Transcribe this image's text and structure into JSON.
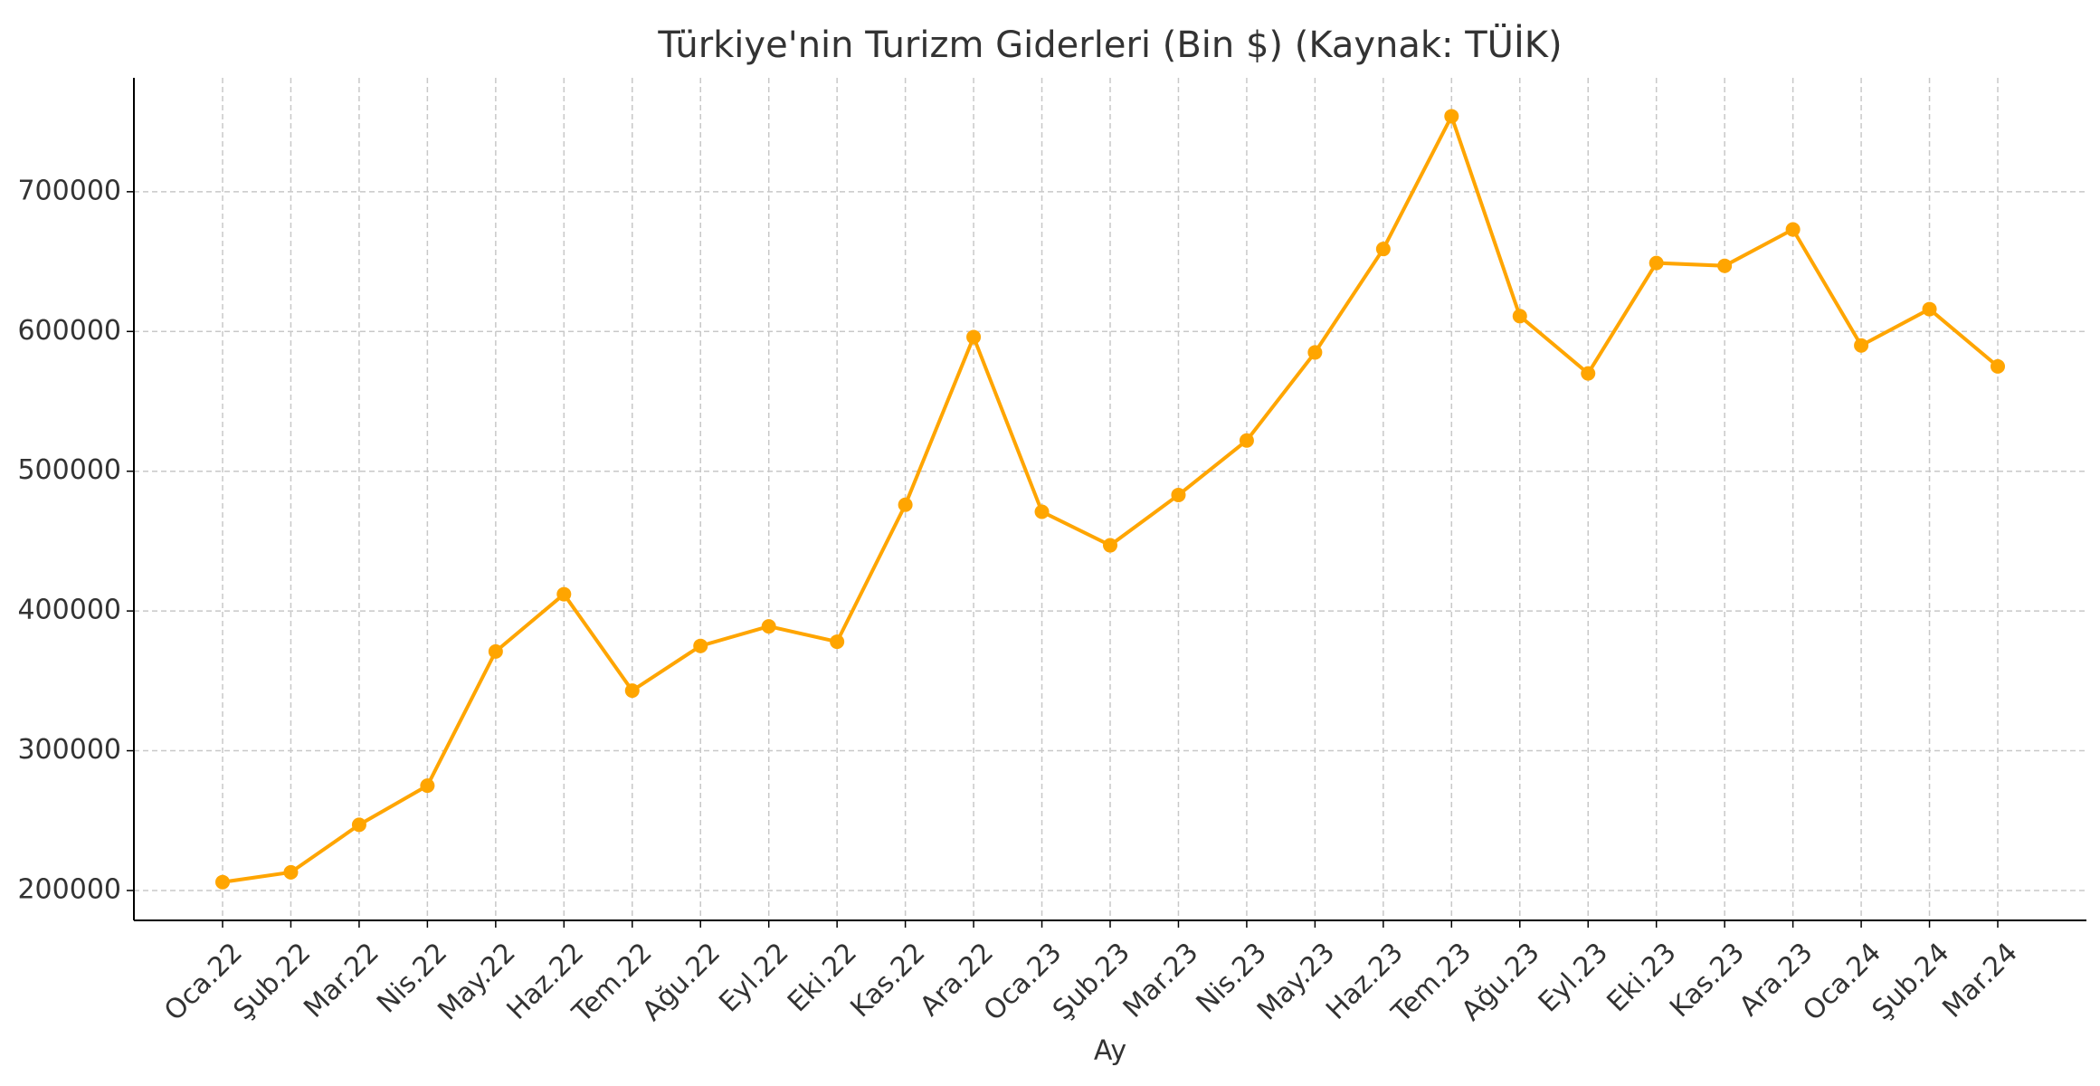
{
  "chart_data": {
    "type": "line",
    "title": "Türkiye'nin Turizm Giderleri (Bin $) (Kaynak: TÜİK)",
    "x_label": "Ay",
    "categories": [
      "Oca.22",
      "Şub.22",
      "Mar.22",
      "Nis.22",
      "May.22",
      "Haz.22",
      "Tem.22",
      "Ağu.22",
      "Eyl.22",
      "Eki.22",
      "Kas.22",
      "Ara.22",
      "Oca.23",
      "Şub.23",
      "Mar.23",
      "Nis.23",
      "May.23",
      "Haz.23",
      "Tem.23",
      "Ağu.23",
      "Eyl.23",
      "Eki.23",
      "Kas.23",
      "Ara.23",
      "Oca.24",
      "Şub.24",
      "Mar.24"
    ],
    "values": [
      206000,
      213000,
      247000,
      275000,
      371000,
      412000,
      343000,
      375000,
      389000,
      378000,
      476000,
      596000,
      471000,
      447000,
      483000,
      522000,
      585000,
      659000,
      754000,
      611000,
      570000,
      649000,
      647000,
      673000,
      590000,
      616000,
      575000
    ],
    "color": "#ffa500",
    "ylim": [
      178600,
      781500
    ],
    "yticks": [
      200000,
      300000,
      400000,
      500000,
      600000,
      700000
    ],
    "grid": true
  }
}
